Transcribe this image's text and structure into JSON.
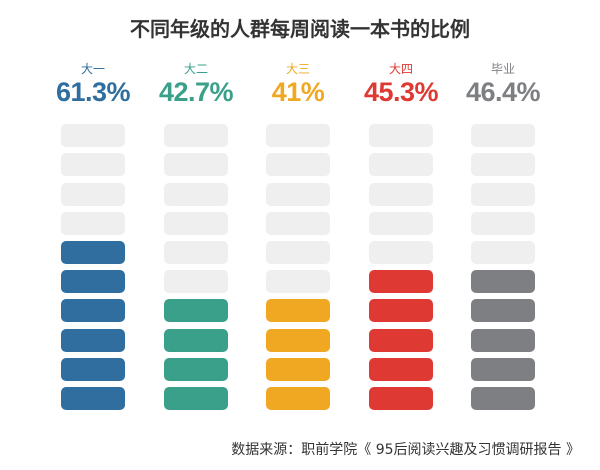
{
  "title": "不同年级的人群每周阅读一本书的比例",
  "source": "数据来源：职前学院《 95后阅读兴趣及习惯调研报告 》",
  "chart_data": {
    "type": "bar",
    "categories": [
      "大一",
      "大二",
      "大三",
      "大四",
      "毕业"
    ],
    "value_labels": [
      "61.3%",
      "42.7%",
      "41%",
      "45.3%",
      "46.4%"
    ],
    "values": [
      61.3,
      42.7,
      41,
      45.3,
      46.4
    ],
    "filled_blocks": [
      6,
      4,
      4,
      5,
      5
    ],
    "total_blocks": 10,
    "colors": [
      "#2f6e9e",
      "#3aa08a",
      "#f0a823",
      "#de3a33",
      "#7d7f82"
    ],
    "empty_color": "#efefef"
  }
}
